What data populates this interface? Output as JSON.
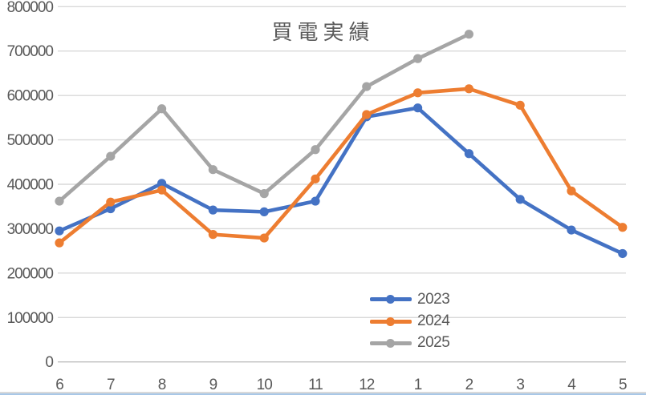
{
  "chart_data": {
    "type": "line",
    "title": "買電実績",
    "xlabel": "",
    "ylabel": "",
    "categories": [
      "6",
      "7",
      "8",
      "9",
      "10",
      "11",
      "12",
      "1",
      "2",
      "3",
      "4",
      "5"
    ],
    "series": [
      {
        "name": "2023",
        "color": "#4472C4",
        "values": [
          295000,
          345000,
          402000,
          342000,
          338000,
          362000,
          552000,
          572000,
          469000,
          366000,
          297000,
          244000
        ]
      },
      {
        "name": "2024",
        "color": "#ED7D31",
        "values": [
          268000,
          360000,
          387000,
          287000,
          279000,
          412000,
          557000,
          606000,
          615000,
          578000,
          385000,
          303000
        ]
      },
      {
        "name": "2025",
        "color": "#A5A5A5",
        "values": [
          362000,
          463000,
          570000,
          433000,
          379000,
          478000,
          620000,
          683000,
          738000,
          null,
          null,
          null
        ]
      }
    ],
    "ylim": [
      0,
      800000
    ],
    "yticks": [
      0,
      100000,
      200000,
      300000,
      400000,
      500000,
      600000,
      700000,
      800000
    ],
    "grid": true,
    "legend_position": "bottom-center"
  },
  "colors": {
    "gridline": "#D9D9D9",
    "axis_zero_line": "#BFBFBF",
    "axis_text": "#595959",
    "title_text": "#595959",
    "bottom_edge_gray": "#D9D9D9",
    "bottom_edge_blue": "#A8C7E7"
  }
}
